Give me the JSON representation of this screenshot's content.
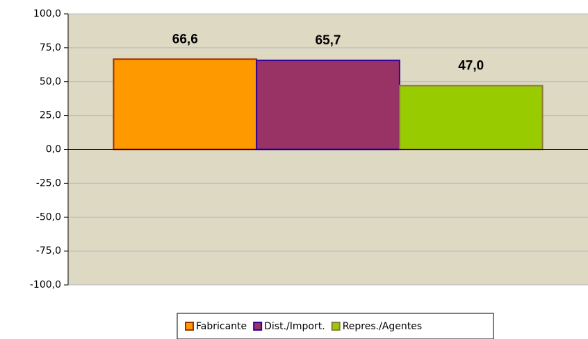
{
  "chart_data": {
    "type": "bar",
    "categories": [
      null
    ],
    "series": [
      {
        "name": "Fabricante",
        "color": "#ff9900",
        "border": "#993300",
        "values": [
          66.6
        ],
        "value_labels": [
          "66,6"
        ]
      },
      {
        "name": "Dist./Import.",
        "color": "#993366",
        "border": "#330099",
        "values": [
          65.7
        ],
        "value_labels": [
          "65,7"
        ]
      },
      {
        "name": "Repres./Agentes",
        "color": "#99cc00",
        "border": "#8c7a3a",
        "values": [
          47.0
        ],
        "value_labels": [
          "47,0"
        ]
      }
    ],
    "ylim": [
      -100,
      100
    ],
    "yticks": [
      {
        "value": -100,
        "label": "-100,0"
      },
      {
        "value": -75,
        "label": "-75,0"
      },
      {
        "value": -50,
        "label": "-50,0"
      },
      {
        "value": -25,
        "label": "-25,0"
      },
      {
        "value": 0,
        "label": "0,0"
      },
      {
        "value": 25,
        "label": "25,0"
      },
      {
        "value": 50,
        "label": "50,0"
      },
      {
        "value": 75,
        "label": "75,0"
      },
      {
        "value": 100,
        "label": "100,0"
      }
    ],
    "grid": true,
    "legend": "bottom"
  }
}
